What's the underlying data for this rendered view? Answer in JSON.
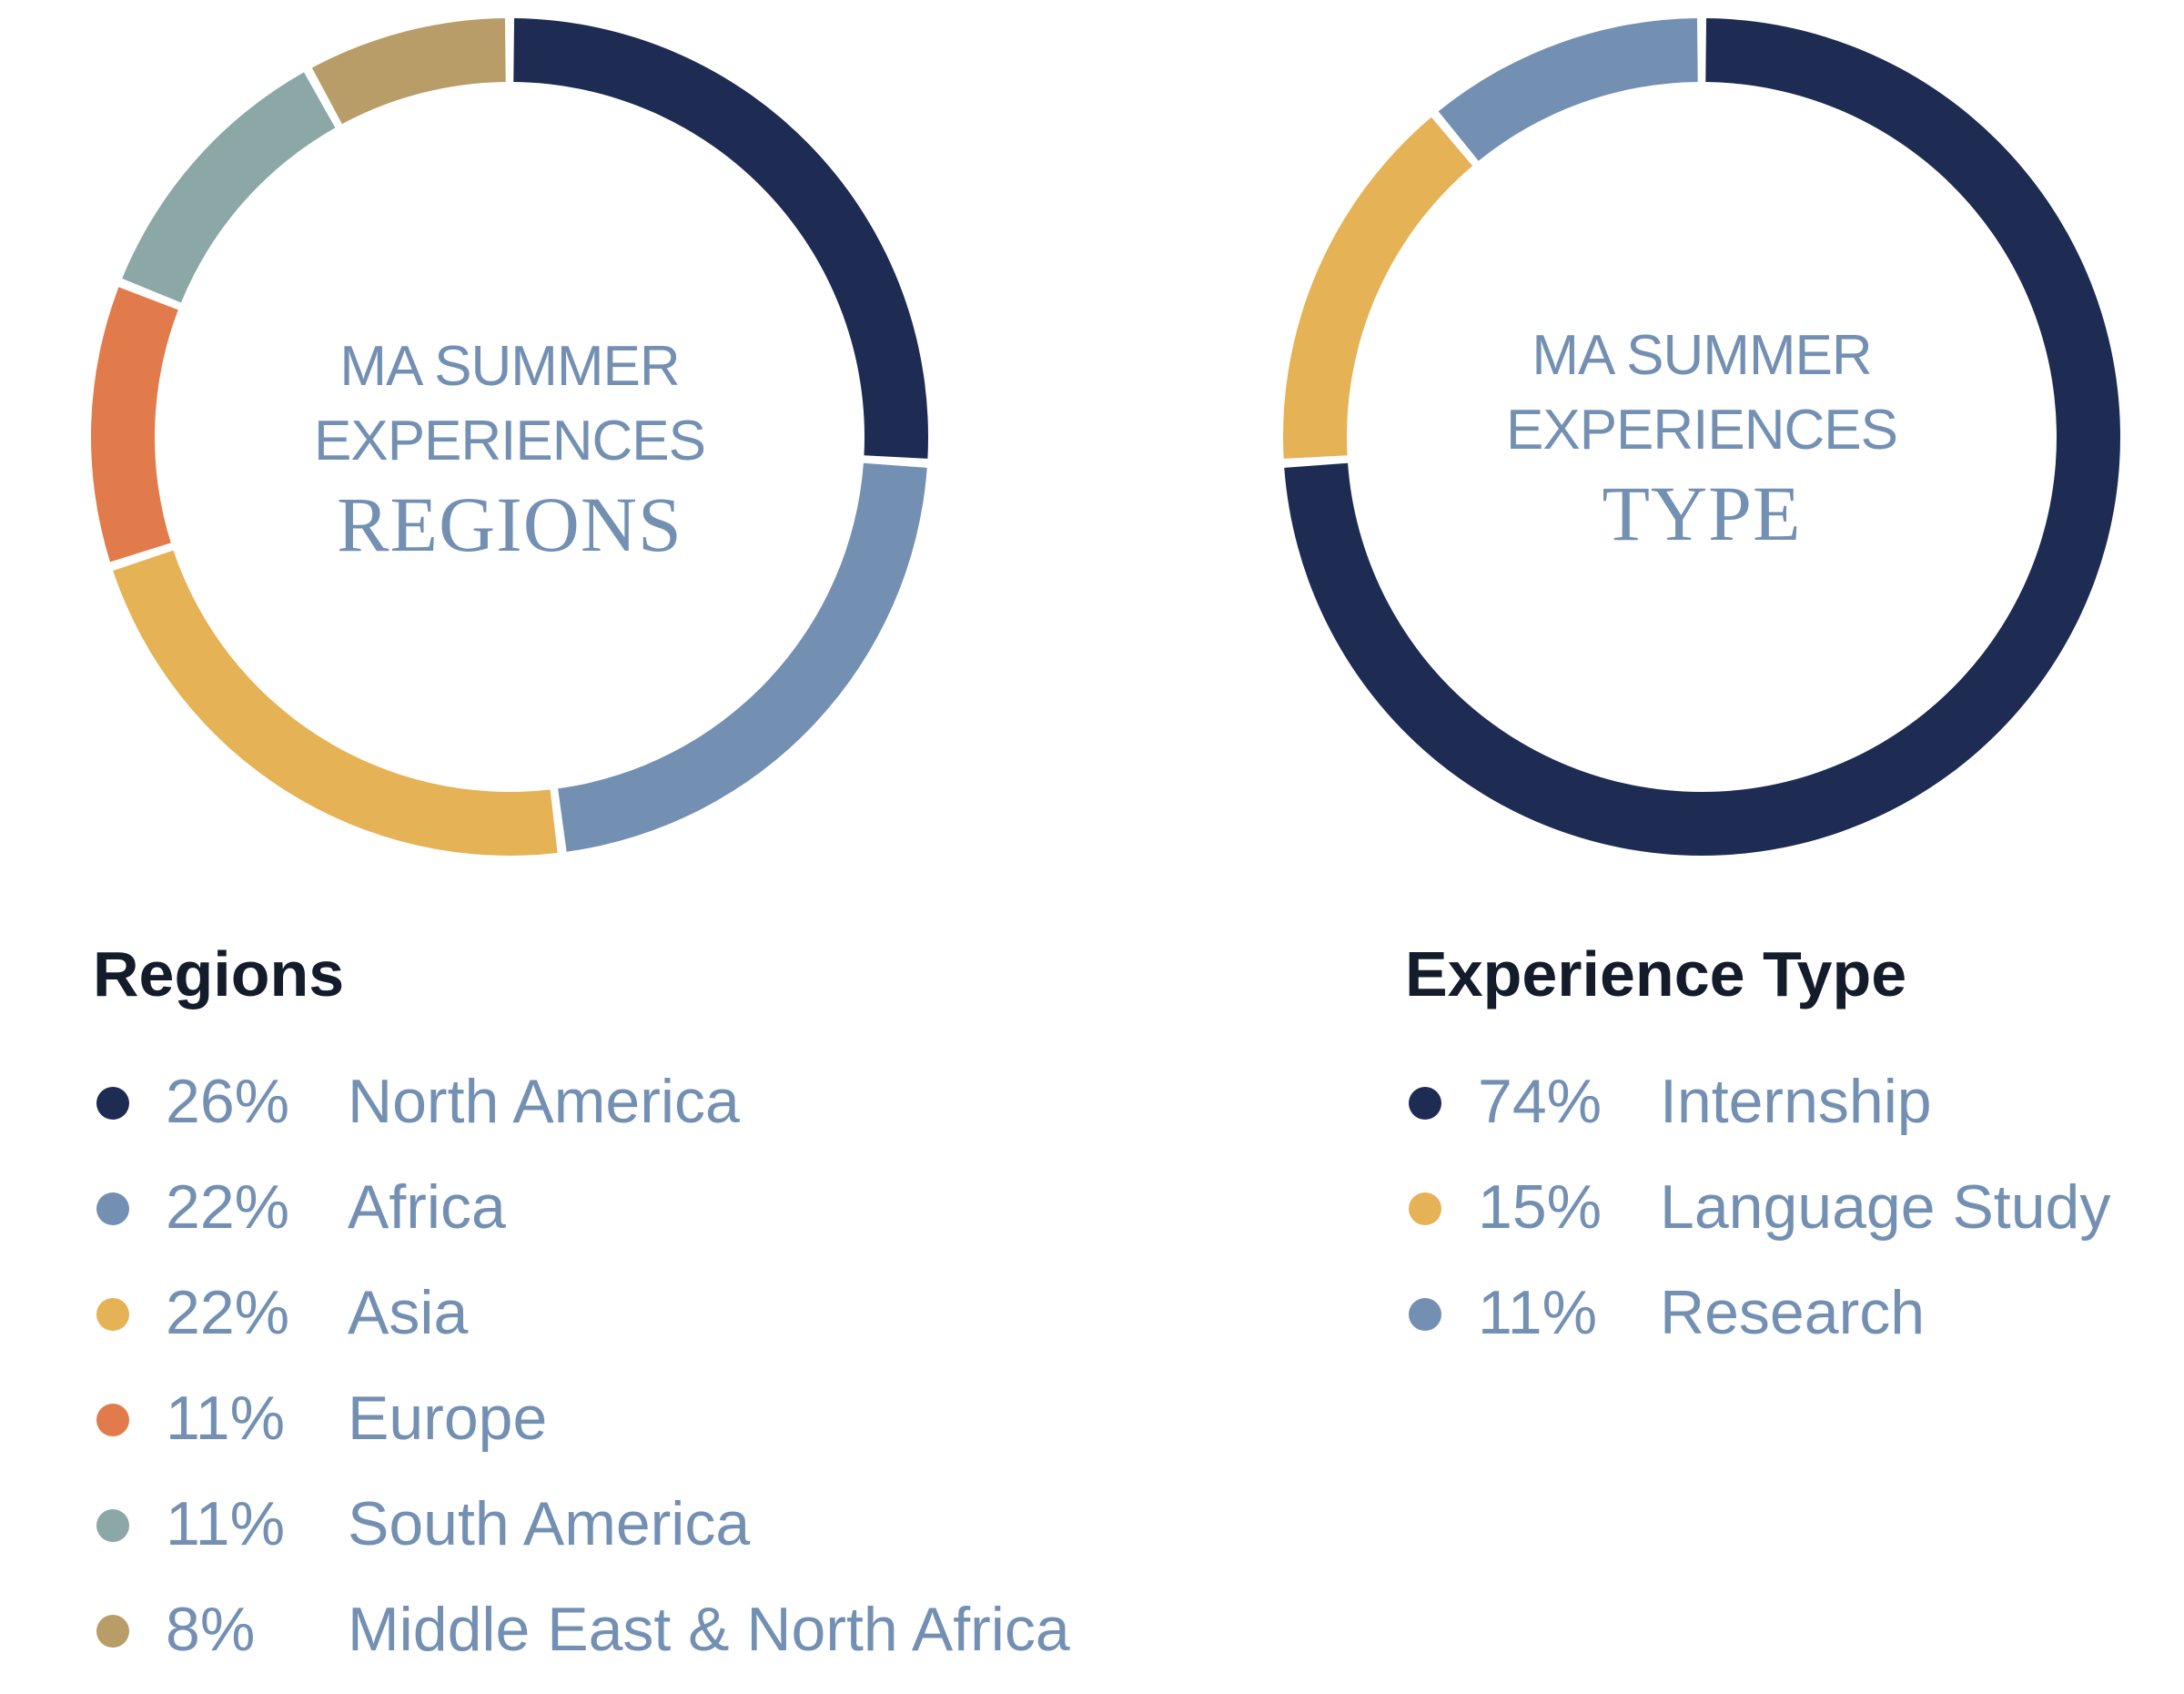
{
  "chart_data": [
    {
      "type": "pie",
      "donut": true,
      "center_label": {
        "line1": "MA SUMMER",
        "line2": "EXPERIENCES",
        "line3": "REGIONS"
      },
      "legend_title": "Regions",
      "categories": [
        "North America",
        "Africa",
        "Asia",
        "Europe",
        "South America",
        "Middle East & North Africa"
      ],
      "values": [
        26,
        22,
        22,
        11,
        11,
        8
      ],
      "value_labels": [
        "26%",
        "22%",
        "22%",
        "11%",
        "11%",
        "8%"
      ],
      "colors": [
        "#1e2c54",
        "#7390b3",
        "#e5b255",
        "#e27b4c",
        "#8ba8a6",
        "#b99d69"
      ]
    },
    {
      "type": "pie",
      "donut": true,
      "center_label": {
        "line1": "MA SUMMER",
        "line2": "EXPERIENCES",
        "line3": "TYPE"
      },
      "legend_title": "Experience Type",
      "categories": [
        "Internship",
        "Language Study",
        "Research"
      ],
      "values": [
        74,
        15,
        11
      ],
      "value_labels": [
        "74%",
        "15%",
        "11%"
      ],
      "colors": [
        "#1e2c54",
        "#e5b255",
        "#7390b3"
      ]
    }
  ]
}
